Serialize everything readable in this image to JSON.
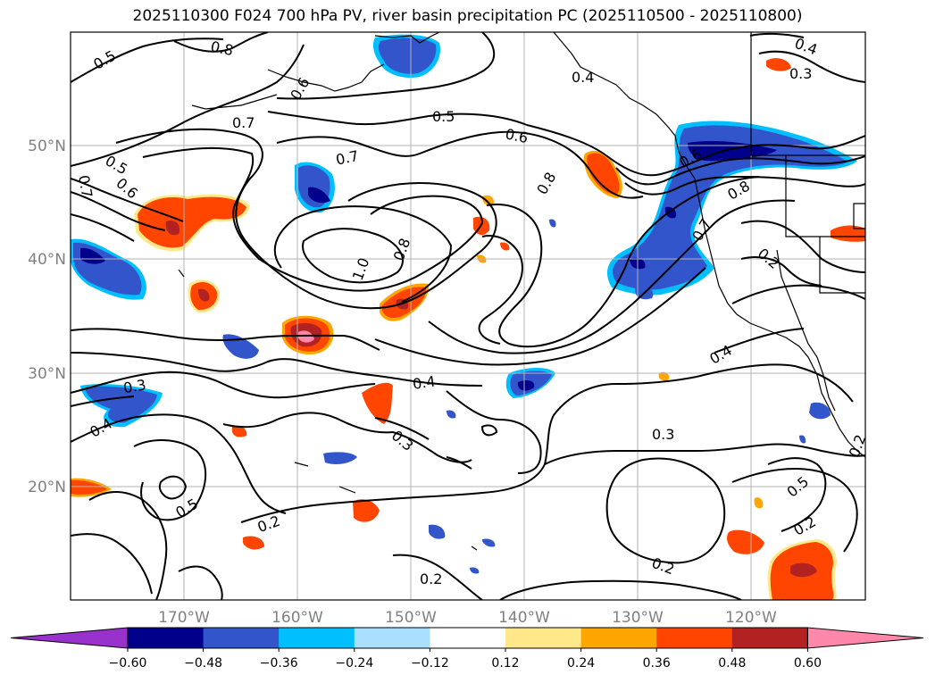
{
  "title": "2025110300 F024 700 hPa PV, river basin precipitation PC (2025110500 - 2025110800)",
  "lat_labels": [
    "50°N",
    "40°N",
    "30°N",
    "20°N"
  ],
  "lon_labels": [
    "170°W",
    "160°W",
    "150°W",
    "140°W",
    "130°W",
    "120°W"
  ],
  "contour_labels": [
    "0.5",
    "0.8",
    "0.6",
    "0.7",
    "0.5",
    "0.6",
    "0.7",
    "0.5",
    "0.7",
    "0.6",
    "0.8",
    "1.0",
    "0.8",
    "0.4",
    "0.3",
    "0.4",
    "0.6",
    "0.8",
    "0.7",
    "0.2",
    "0.3",
    "0.4",
    "0.4",
    "0.3",
    "0.3",
    "0.4",
    "0.5",
    "0.5",
    "0.2",
    "0.2",
    "0.2",
    "0.2",
    "0.2"
  ],
  "colorbar": {
    "colors": [
      "#9932cc",
      "#00008b",
      "#3355cc",
      "#00bfff",
      "#aadfff",
      "#ffffff",
      "#ffe88a",
      "#ffa500",
      "#ff4500",
      "#b22222",
      "#ff88aa"
    ],
    "ticks": [
      "−0.60",
      "−0.48",
      "−0.36",
      "−0.24",
      "−0.12",
      "0.12",
      "0.24",
      "0.36",
      "0.48",
      "0.60"
    ]
  }
}
